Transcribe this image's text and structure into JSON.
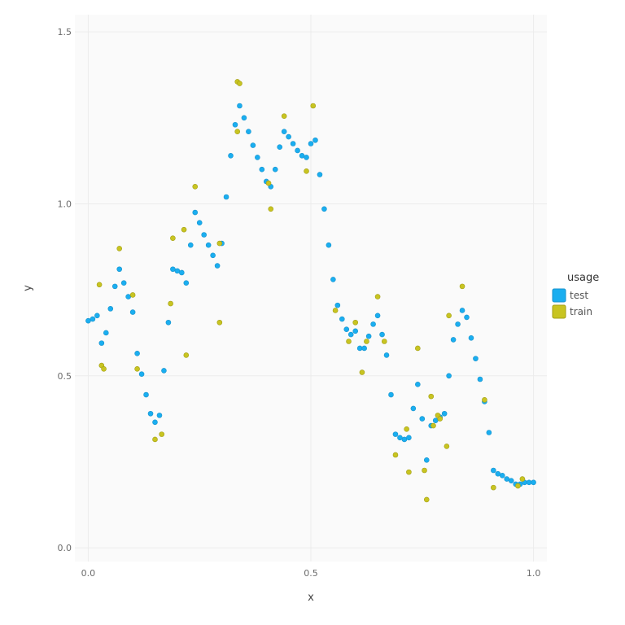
{
  "chart_data": {
    "type": "scatter",
    "xlabel": "x",
    "ylabel": "y",
    "xlim": [
      -0.03,
      1.03
    ],
    "ylim": [
      -0.04,
      1.55
    ],
    "xticks": [
      0.0,
      0.5,
      1.0
    ],
    "xtick_labels": [
      "0.0",
      "0.5",
      "1.0"
    ],
    "yticks": [
      0.0,
      0.5,
      1.0,
      1.5
    ],
    "ytick_labels": [
      "0.0",
      "0.5",
      "1.0",
      "1.5"
    ],
    "grid": true,
    "legend": {
      "title": "usage",
      "placement": "right"
    },
    "series": [
      {
        "name": "test",
        "color": "#1aaef0",
        "points": [
          [
            0.0,
            0.66
          ],
          [
            0.01,
            0.665
          ],
          [
            0.02,
            0.675
          ],
          [
            0.03,
            0.595
          ],
          [
            0.04,
            0.625
          ],
          [
            0.05,
            0.695
          ],
          [
            0.06,
            0.76
          ],
          [
            0.07,
            0.81
          ],
          [
            0.08,
            0.77
          ],
          [
            0.09,
            0.73
          ],
          [
            0.1,
            0.685
          ],
          [
            0.11,
            0.565
          ],
          [
            0.12,
            0.505
          ],
          [
            0.13,
            0.445
          ],
          [
            0.14,
            0.39
          ],
          [
            0.15,
            0.365
          ],
          [
            0.16,
            0.385
          ],
          [
            0.17,
            0.515
          ],
          [
            0.18,
            0.655
          ],
          [
            0.19,
            0.81
          ],
          [
            0.2,
            0.805
          ],
          [
            0.21,
            0.8
          ],
          [
            0.22,
            0.77
          ],
          [
            0.23,
            0.88
          ],
          [
            0.24,
            0.975
          ],
          [
            0.25,
            0.945
          ],
          [
            0.26,
            0.91
          ],
          [
            0.27,
            0.88
          ],
          [
            0.28,
            0.85
          ],
          [
            0.29,
            0.82
          ],
          [
            0.3,
            0.885
          ],
          [
            0.31,
            1.02
          ],
          [
            0.32,
            1.14
          ],
          [
            0.33,
            1.23
          ],
          [
            0.34,
            1.285
          ],
          [
            0.35,
            1.25
          ],
          [
            0.36,
            1.21
          ],
          [
            0.37,
            1.17
          ],
          [
            0.38,
            1.135
          ],
          [
            0.39,
            1.1
          ],
          [
            0.4,
            1.065
          ],
          [
            0.41,
            1.05
          ],
          [
            0.42,
            1.1
          ],
          [
            0.43,
            1.165
          ],
          [
            0.44,
            1.21
          ],
          [
            0.45,
            1.195
          ],
          [
            0.46,
            1.175
          ],
          [
            0.47,
            1.155
          ],
          [
            0.48,
            1.14
          ],
          [
            0.49,
            1.135
          ],
          [
            0.5,
            1.175
          ],
          [
            0.51,
            1.185
          ],
          [
            0.52,
            1.085
          ],
          [
            0.53,
            0.985
          ],
          [
            0.54,
            0.88
          ],
          [
            0.55,
            0.78
          ],
          [
            0.56,
            0.705
          ],
          [
            0.57,
            0.665
          ],
          [
            0.58,
            0.635
          ],
          [
            0.59,
            0.62
          ],
          [
            0.6,
            0.63
          ],
          [
            0.61,
            0.58
          ],
          [
            0.62,
            0.58
          ],
          [
            0.63,
            0.615
          ],
          [
            0.64,
            0.65
          ],
          [
            0.65,
            0.675
          ],
          [
            0.66,
            0.62
          ],
          [
            0.67,
            0.56
          ],
          [
            0.68,
            0.445
          ],
          [
            0.69,
            0.33
          ],
          [
            0.7,
            0.32
          ],
          [
            0.71,
            0.315
          ],
          [
            0.72,
            0.32
          ],
          [
            0.73,
            0.405
          ],
          [
            0.74,
            0.475
          ],
          [
            0.75,
            0.375
          ],
          [
            0.76,
            0.255
          ],
          [
            0.77,
            0.355
          ],
          [
            0.78,
            0.37
          ],
          [
            0.79,
            0.38
          ],
          [
            0.8,
            0.39
          ],
          [
            0.81,
            0.5
          ],
          [
            0.82,
            0.605
          ],
          [
            0.83,
            0.65
          ],
          [
            0.84,
            0.69
          ],
          [
            0.85,
            0.67
          ],
          [
            0.86,
            0.61
          ],
          [
            0.87,
            0.55
          ],
          [
            0.88,
            0.49
          ],
          [
            0.89,
            0.425
          ],
          [
            0.9,
            0.335
          ],
          [
            0.91,
            0.225
          ],
          [
            0.92,
            0.215
          ],
          [
            0.93,
            0.21
          ],
          [
            0.94,
            0.2
          ],
          [
            0.95,
            0.195
          ],
          [
            0.96,
            0.185
          ],
          [
            0.97,
            0.185
          ],
          [
            0.98,
            0.19
          ],
          [
            0.99,
            0.19
          ],
          [
            1.0,
            0.19
          ]
        ]
      },
      {
        "name": "train",
        "color": "#c8c421",
        "points": [
          [
            0.025,
            0.765
          ],
          [
            0.03,
            0.53
          ],
          [
            0.035,
            0.52
          ],
          [
            0.07,
            0.87
          ],
          [
            0.1,
            0.735
          ],
          [
            0.11,
            0.52
          ],
          [
            0.15,
            0.315
          ],
          [
            0.165,
            0.33
          ],
          [
            0.185,
            0.71
          ],
          [
            0.19,
            0.9
          ],
          [
            0.215,
            0.925
          ],
          [
            0.22,
            0.56
          ],
          [
            0.24,
            1.05
          ],
          [
            0.295,
            0.655
          ],
          [
            0.295,
            0.885
          ],
          [
            0.335,
            1.21
          ],
          [
            0.335,
            1.355
          ],
          [
            0.34,
            1.35
          ],
          [
            0.405,
            1.06
          ],
          [
            0.41,
            0.985
          ],
          [
            0.44,
            1.255
          ],
          [
            0.49,
            1.095
          ],
          [
            0.505,
            1.285
          ],
          [
            0.555,
            0.69
          ],
          [
            0.585,
            0.6
          ],
          [
            0.6,
            0.655
          ],
          [
            0.615,
            0.51
          ],
          [
            0.625,
            0.6
          ],
          [
            0.65,
            0.73
          ],
          [
            0.665,
            0.6
          ],
          [
            0.69,
            0.27
          ],
          [
            0.715,
            0.345
          ],
          [
            0.72,
            0.22
          ],
          [
            0.74,
            0.58
          ],
          [
            0.755,
            0.225
          ],
          [
            0.76,
            0.14
          ],
          [
            0.77,
            0.44
          ],
          [
            0.775,
            0.355
          ],
          [
            0.785,
            0.385
          ],
          [
            0.79,
            0.375
          ],
          [
            0.805,
            0.295
          ],
          [
            0.81,
            0.675
          ],
          [
            0.84,
            0.76
          ],
          [
            0.89,
            0.43
          ],
          [
            0.91,
            0.175
          ],
          [
            0.965,
            0.18
          ],
          [
            0.975,
            0.2
          ]
        ]
      }
    ]
  }
}
